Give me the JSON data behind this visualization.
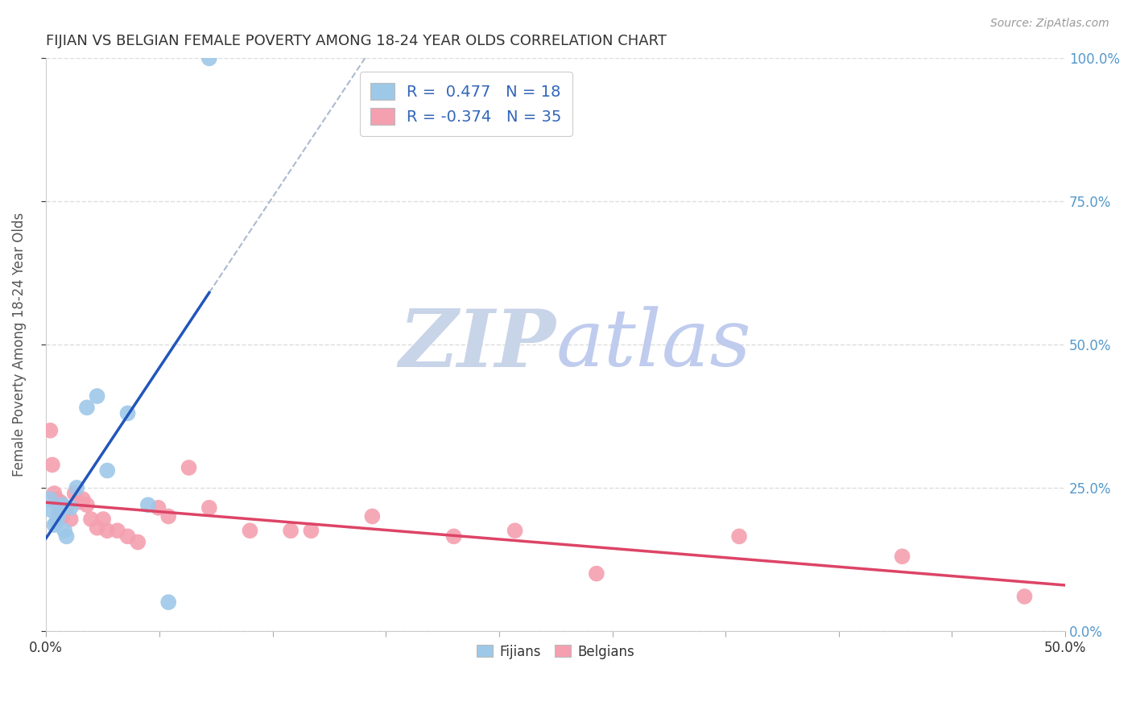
{
  "title": "FIJIAN VS BELGIAN FEMALE POVERTY AMONG 18-24 YEAR OLDS CORRELATION CHART",
  "source": "Source: ZipAtlas.com",
  "ylabel": "Female Poverty Among 18-24 Year Olds",
  "xlim": [
    0.0,
    0.5
  ],
  "ylim": [
    0.0,
    1.0
  ],
  "yticks": [
    0.0,
    0.25,
    0.5,
    0.75,
    1.0
  ],
  "xtick_positions": [
    0.0,
    0.05556,
    0.1111,
    0.1667,
    0.2222,
    0.2778,
    0.3333,
    0.3889,
    0.4444,
    0.5
  ],
  "ytick_labels_right": [
    "0.0%",
    "25.0%",
    "50.0%",
    "75.0%",
    "100.0%"
  ],
  "fijian_color": "#9ec8e8",
  "belgian_color": "#f4a0b0",
  "fijian_line_color": "#2255bb",
  "belgian_line_color": "#dd4466",
  "diag_line_color": "#aabbd0",
  "fijian_R": 0.477,
  "fijian_N": 18,
  "belgian_R": -0.374,
  "belgian_N": 35,
  "fijian_x": [
    0.002,
    0.003,
    0.004,
    0.005,
    0.006,
    0.007,
    0.008,
    0.009,
    0.01,
    0.012,
    0.015,
    0.02,
    0.025,
    0.03,
    0.04,
    0.05,
    0.06,
    0.08
  ],
  "fijian_y": [
    0.23,
    0.21,
    0.185,
    0.19,
    0.2,
    0.215,
    0.22,
    0.175,
    0.165,
    0.215,
    0.25,
    0.39,
    0.41,
    0.28,
    0.38,
    0.22,
    0.05,
    1.0
  ],
  "belgian_x": [
    0.002,
    0.003,
    0.004,
    0.005,
    0.006,
    0.007,
    0.008,
    0.009,
    0.01,
    0.012,
    0.014,
    0.016,
    0.018,
    0.02,
    0.022,
    0.025,
    0.028,
    0.03,
    0.035,
    0.04,
    0.045,
    0.055,
    0.06,
    0.07,
    0.08,
    0.1,
    0.12,
    0.13,
    0.16,
    0.2,
    0.23,
    0.27,
    0.34,
    0.42,
    0.48
  ],
  "belgian_y": [
    0.35,
    0.29,
    0.24,
    0.23,
    0.215,
    0.225,
    0.2,
    0.21,
    0.215,
    0.195,
    0.24,
    0.225,
    0.23,
    0.22,
    0.195,
    0.18,
    0.195,
    0.175,
    0.175,
    0.165,
    0.155,
    0.215,
    0.2,
    0.285,
    0.215,
    0.175,
    0.175,
    0.175,
    0.2,
    0.165,
    0.175,
    0.1,
    0.165,
    0.13,
    0.06
  ],
  "background_color": "#ffffff",
  "grid_color": "#dddddd",
  "legend_edge_color": "#cccccc",
  "legend_text_color": "#3366bb",
  "title_color": "#333333",
  "ylabel_color": "#555555",
  "right_tick_color": "#5599cc",
  "source_color": "#999999"
}
